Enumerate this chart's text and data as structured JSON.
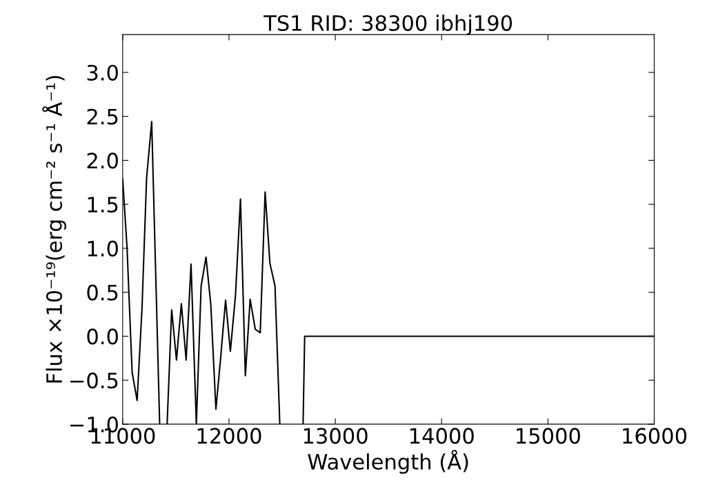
{
  "chart_data": {
    "type": "line",
    "title": "TS1 RID: 38300 ibhj190",
    "xlabel": "Wavelength (Å)",
    "ylabel": "Flux ×10⁻¹⁹(erg cm⁻² s⁻¹ Å⁻¹)",
    "series": [
      {
        "color": "#000000",
        "x": [
          11000,
          11041,
          11089,
          11136,
          11182,
          11225,
          11273,
          11348,
          11383,
          11418,
          11461,
          11506,
          11552,
          11597,
          11643,
          11693,
          11738,
          11784,
          11829,
          11877,
          11922,
          11968,
          12013,
          12061,
          12108,
          12154,
          12199,
          12247,
          12294,
          12340,
          12385,
          12433,
          12478,
          12590,
          12697,
          12712,
          16000
        ],
        "values": [
          1.79,
          1.01,
          -0.41,
          -0.73,
          0.32,
          1.8,
          2.44,
          -1.0,
          null,
          -1.0,
          0.3,
          -0.27,
          0.37,
          -0.27,
          0.82,
          -1.0,
          0.57,
          0.9,
          0.36,
          -0.83,
          -0.24,
          0.41,
          -0.17,
          0.46,
          1.56,
          -0.45,
          0.42,
          0.08,
          0.04,
          1.64,
          0.83,
          0.57,
          -1.0,
          null,
          -1.0,
          0.0,
          0.0
        ]
      }
    ],
    "xlim": [
      11000,
      16000
    ],
    "xticks": [
      11000,
      12000,
      13000,
      14000,
      15000,
      16000
    ],
    "ylim": [
      -1.0,
      3.43
    ],
    "yticks": [
      {
        "value": -1.0,
        "label": "−1.0"
      },
      {
        "value": -0.5,
        "label": "−0.5"
      },
      {
        "value": 0.0,
        "label": "0.0"
      },
      {
        "value": 0.5,
        "label": "0.5"
      },
      {
        "value": 1.0,
        "label": "1.0"
      },
      {
        "value": 1.5,
        "label": "1.5"
      },
      {
        "value": 2.0,
        "label": "2.0"
      },
      {
        "value": 2.5,
        "label": "2.5"
      },
      {
        "value": 3.0,
        "label": "3.0"
      }
    ],
    "grid": false,
    "legend": false,
    "line_style": "solid"
  }
}
